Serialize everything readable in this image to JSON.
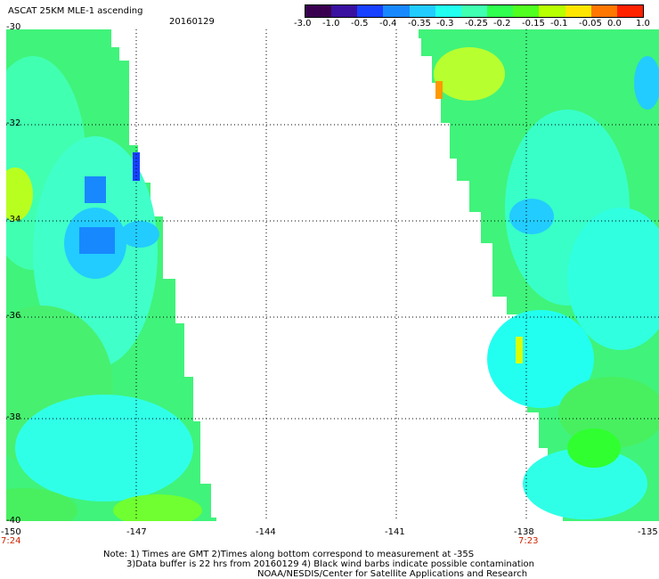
{
  "header": {
    "title": "ASCAT 25KM MLE-1 ascending",
    "date": "20160129"
  },
  "colorbar": {
    "ticks": [
      "-3.0",
      "-1.0",
      "-0.5",
      "-0.4",
      "-0.35",
      "-0.3",
      "-0.25",
      "-0.2",
      "-0.15",
      "-0.1",
      "-0.05",
      "0.0",
      "1.0"
    ],
    "colors": [
      "#3a0050",
      "#3a10a0",
      "#1840ff",
      "#1888ff",
      "#22ccff",
      "#22fff0",
      "#40ffb0",
      "#30ff50",
      "#50ff20",
      "#b8ff00",
      "#ffe600",
      "#ff7700",
      "#ff2200"
    ]
  },
  "map": {
    "y_axis_labels": [
      "-30",
      "-32",
      "-34",
      "-36",
      "-38",
      "-40"
    ],
    "x_axis_labels": [
      "-150",
      "-147",
      "-144",
      "-141",
      "-138",
      "-135"
    ],
    "times": {
      "left": "7:24",
      "right": "7:23"
    },
    "gridlines": true
  },
  "notes": {
    "line1": "Note: 1) Times are GMT 2)Times along bottom correspond to measurement at -35S",
    "line2": "3)Data buffer is 22 hrs from 20160129 4) Black wind barbs indicate possible contamination",
    "line3": "NOAA/NESDIS/Center for Satellite Applications and Research"
  }
}
